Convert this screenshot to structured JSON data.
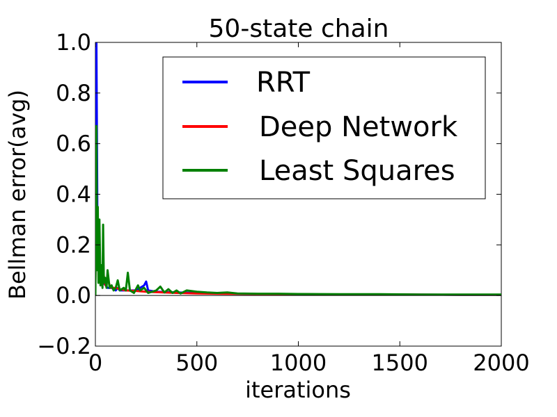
{
  "chart_data": {
    "type": "line",
    "title": "50-state chain",
    "xlabel": "iterations",
    "ylabel": "Bellman error(avg)",
    "xlim": [
      0,
      2000
    ],
    "ylim": [
      -0.2,
      1.0
    ],
    "xticks": [
      0,
      500,
      1000,
      1500,
      2000
    ],
    "yticks": [
      -0.2,
      0.0,
      0.2,
      0.4,
      0.6,
      0.8,
      1.0
    ],
    "xtick_labels": [
      "0",
      "500",
      "1000",
      "1500",
      "2000"
    ],
    "ytick_labels": [
      "−0.2",
      "0.0",
      "0.2",
      "0.4",
      "0.6",
      "0.8",
      "1.0"
    ],
    "grid": false,
    "legend_position": "top-right",
    "series": [
      {
        "name": "RRT",
        "color": "#0000ff",
        "x": [
          0,
          5,
          10,
          15,
          20,
          30,
          40,
          50,
          60,
          80,
          100,
          110,
          120,
          150,
          200,
          240,
          250,
          260,
          300,
          400,
          500,
          600,
          800,
          1000,
          1200,
          1500,
          1800,
          2000
        ],
        "y": [
          0.05,
          1.0,
          0.3,
          0.15,
          0.08,
          0.06,
          0.05,
          0.04,
          0.03,
          0.03,
          0.02,
          0.03,
          0.02,
          0.02,
          0.02,
          0.04,
          0.055,
          0.02,
          0.015,
          0.012,
          0.01,
          0.008,
          0.006,
          0.005,
          0.004,
          0.004,
          0.003,
          0.003
        ]
      },
      {
        "name": "Deep Network",
        "color": "#ff0000",
        "x": [
          0,
          5,
          10,
          15,
          20,
          30,
          40,
          45,
          50,
          60,
          70,
          80,
          100,
          120,
          150,
          200,
          250,
          300,
          400,
          500,
          600,
          800,
          1000,
          1200,
          1500,
          1800,
          2000
        ],
        "y": [
          0.05,
          0.4,
          0.2,
          0.12,
          0.08,
          0.06,
          0.09,
          0.05,
          0.04,
          0.07,
          0.04,
          0.03,
          0.03,
          0.025,
          0.02,
          0.018,
          0.015,
          0.013,
          0.01,
          0.008,
          0.007,
          0.006,
          0.005,
          0.004,
          0.004,
          0.003,
          0.003
        ]
      },
      {
        "name": "Least Squares",
        "color": "#008000",
        "x": [
          0,
          5,
          8,
          12,
          15,
          20,
          25,
          30,
          35,
          38,
          42,
          48,
          55,
          60,
          70,
          80,
          90,
          100,
          110,
          120,
          140,
          150,
          160,
          170,
          190,
          210,
          220,
          240,
          260,
          300,
          320,
          340,
          360,
          380,
          400,
          420,
          450,
          500,
          550,
          600,
          650,
          700,
          800,
          900,
          1000,
          1200,
          1400,
          1600,
          1800,
          2000
        ],
        "y": [
          0.0,
          0.67,
          0.1,
          0.35,
          0.05,
          0.3,
          0.04,
          0.12,
          0.03,
          0.28,
          0.05,
          0.07,
          0.03,
          0.1,
          0.03,
          0.04,
          0.02,
          0.03,
          0.06,
          0.02,
          0.03,
          0.02,
          0.09,
          0.02,
          0.01,
          0.04,
          0.02,
          0.03,
          0.01,
          0.02,
          0.035,
          0.012,
          0.025,
          0.01,
          0.02,
          0.008,
          0.02,
          0.015,
          0.012,
          0.01,
          0.012,
          0.008,
          0.007,
          0.007,
          0.006,
          0.005,
          0.005,
          0.004,
          0.004,
          0.004
        ]
      }
    ]
  }
}
